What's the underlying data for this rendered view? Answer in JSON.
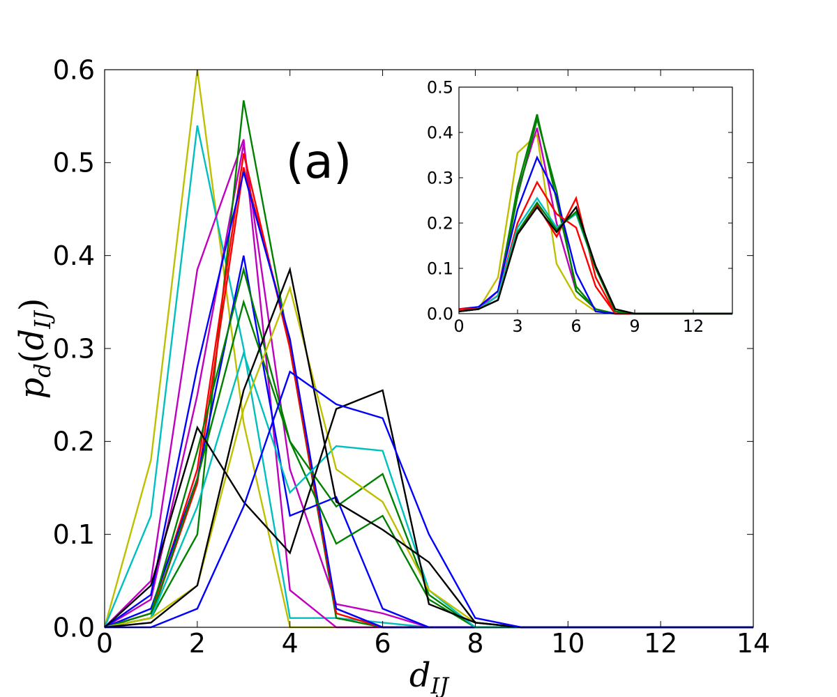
{
  "chart_data": [
    {
      "id": "main",
      "type": "line",
      "title": "",
      "annotation": "(a)",
      "xlabel": {
        "main": "d",
        "sub": "IJ"
      },
      "ylabel": {
        "main": "p",
        "sub": "d",
        "arg_main": "d",
        "arg_sub": "IJ",
        "open": "(",
        "close": ")"
      },
      "xlim": [
        0,
        14
      ],
      "ylim": [
        0,
        0.6
      ],
      "xticks": [
        0,
        2,
        4,
        6,
        8,
        10,
        12,
        14
      ],
      "xtick_labels": [
        "0",
        "2",
        "4",
        "6",
        "8",
        "10",
        "12",
        "14"
      ],
      "yticks": [
        0,
        0.1,
        0.2,
        0.3,
        0.4,
        0.5,
        0.6
      ],
      "ytick_labels": [
        "0.0",
        "0.1",
        "0.2",
        "0.3",
        "0.4",
        "0.5",
        "0.6"
      ],
      "x": [
        0,
        1,
        2,
        3,
        4,
        5,
        6,
        7,
        8,
        9,
        10,
        11,
        12,
        13,
        14
      ],
      "series": [
        {
          "color": "#bfbf00",
          "values": [
            0,
            0.18,
            0.6,
            0.22,
            0.0,
            0.0,
            0.0,
            0,
            0,
            0,
            0,
            0,
            0,
            0,
            0
          ]
        },
        {
          "color": "#00bfbf",
          "values": [
            0,
            0.12,
            0.54,
            0.3,
            0.01,
            0.01,
            0.005,
            0,
            0,
            0,
            0,
            0,
            0,
            0,
            0
          ]
        },
        {
          "color": "#bf00bf",
          "values": [
            0,
            0.05,
            0.385,
            0.525,
            0.04,
            0.0,
            0.0,
            0,
            0,
            0,
            0,
            0,
            0,
            0,
            0
          ]
        },
        {
          "color": "#bf00bf",
          "values": [
            0,
            0.03,
            0.25,
            0.52,
            0.17,
            0.025,
            0.015,
            0,
            0,
            0,
            0,
            0,
            0,
            0,
            0
          ]
        },
        {
          "color": "#008000",
          "values": [
            0,
            0.01,
            0.1,
            0.567,
            0.3,
            0.01,
            0.0,
            0,
            0,
            0,
            0,
            0,
            0,
            0,
            0
          ]
        },
        {
          "color": "#ff0000",
          "values": [
            0,
            0.015,
            0.17,
            0.51,
            0.3,
            0.015,
            0.0,
            0,
            0,
            0,
            0,
            0,
            0,
            0,
            0
          ]
        },
        {
          "color": "#ff0000",
          "values": [
            0,
            0.01,
            0.155,
            0.495,
            0.31,
            0.02,
            0.0,
            0,
            0,
            0,
            0,
            0,
            0,
            0,
            0
          ]
        },
        {
          "color": "#0000ff",
          "values": [
            0,
            0.035,
            0.28,
            0.49,
            0.31,
            0.02,
            0.0,
            0,
            0,
            0,
            0,
            0,
            0,
            0,
            0
          ]
        },
        {
          "color": "#0000ff",
          "values": [
            0,
            0.02,
            0.16,
            0.4,
            0.12,
            0.14,
            0.02,
            0,
            0,
            0,
            0,
            0,
            0,
            0,
            0
          ]
        },
        {
          "color": "#008000",
          "values": [
            0,
            0.015,
            0.19,
            0.385,
            0.2,
            0.09,
            0.12,
            0.03,
            0.0,
            0,
            0,
            0,
            0,
            0,
            0
          ]
        },
        {
          "color": "#008000",
          "values": [
            0,
            0.01,
            0.16,
            0.35,
            0.2,
            0.13,
            0.165,
            0.035,
            0.0,
            0,
            0,
            0,
            0,
            0,
            0
          ]
        },
        {
          "color": "#00bfbf",
          "values": [
            0,
            0.01,
            0.13,
            0.295,
            0.145,
            0.195,
            0.19,
            0.04,
            0.0,
            0,
            0,
            0,
            0,
            0,
            0
          ]
        },
        {
          "color": "#bfbf00",
          "values": [
            0,
            0.01,
            0.045,
            0.235,
            0.365,
            0.17,
            0.135,
            0.04,
            0.005,
            0,
            0,
            0,
            0,
            0,
            0
          ]
        },
        {
          "color": "#000000",
          "values": [
            0,
            0.005,
            0.045,
            0.255,
            0.385,
            0.135,
            0.105,
            0.07,
            0.005,
            0,
            0,
            0,
            0,
            0,
            0
          ]
        },
        {
          "color": "#000000",
          "values": [
            0,
            0.045,
            0.215,
            0.135,
            0.08,
            0.235,
            0.255,
            0.025,
            0.005,
            0,
            0,
            0,
            0,
            0,
            0
          ]
        },
        {
          "color": "#0000ff",
          "values": [
            0,
            0.0,
            0.02,
            0.13,
            0.275,
            0.24,
            0.225,
            0.1,
            0.01,
            0,
            0,
            0,
            0,
            0,
            0
          ]
        }
      ]
    },
    {
      "id": "inset",
      "type": "line",
      "title": "",
      "xlim": [
        0,
        14
      ],
      "ylim": [
        0,
        0.5
      ],
      "xticks": [
        0,
        3,
        6,
        9,
        12
      ],
      "xtick_labels": [
        "0",
        "3",
        "6",
        "9",
        "12"
      ],
      "yticks": [
        0,
        0.1,
        0.2,
        0.3,
        0.4,
        0.5
      ],
      "ytick_labels": [
        "0.0",
        "0.1",
        "0.2",
        "0.3",
        "0.4",
        "0.5"
      ],
      "x": [
        0,
        1,
        2,
        3,
        4,
        5,
        6,
        7,
        8,
        9,
        10,
        11,
        12,
        13,
        14
      ],
      "series": [
        {
          "color": "#bfbf00",
          "values": [
            0.01,
            0.01,
            0.08,
            0.355,
            0.395,
            0.11,
            0.035,
            0.005,
            0,
            0,
            0,
            0,
            0,
            0,
            0
          ]
        },
        {
          "color": "#bf00bf",
          "values": [
            0.005,
            0.01,
            0.05,
            0.27,
            0.41,
            0.2,
            0.05,
            0.01,
            0,
            0,
            0,
            0,
            0,
            0,
            0
          ]
        },
        {
          "color": "#008000",
          "values": [
            0.005,
            0.01,
            0.04,
            0.28,
            0.44,
            0.25,
            0.06,
            0.01,
            0,
            0,
            0,
            0,
            0,
            0,
            0
          ]
        },
        {
          "color": "#008000",
          "values": [
            0.005,
            0.01,
            0.04,
            0.26,
            0.43,
            0.27,
            0.05,
            0.01,
            0,
            0,
            0,
            0,
            0,
            0,
            0
          ]
        },
        {
          "color": "#0000ff",
          "values": [
            0.01,
            0.015,
            0.05,
            0.23,
            0.345,
            0.26,
            0.09,
            0.005,
            0,
            0,
            0,
            0,
            0,
            0,
            0
          ]
        },
        {
          "color": "#ff0000",
          "values": [
            0.01,
            0.01,
            0.04,
            0.2,
            0.29,
            0.22,
            0.19,
            0.06,
            0,
            0,
            0,
            0,
            0,
            0,
            0
          ]
        },
        {
          "color": "#ff0000",
          "values": [
            0.01,
            0.01,
            0.04,
            0.175,
            0.24,
            0.17,
            0.255,
            0.08,
            0,
            0,
            0,
            0,
            0,
            0,
            0
          ]
        },
        {
          "color": "#00bfbf",
          "values": [
            0.005,
            0.01,
            0.04,
            0.19,
            0.255,
            0.19,
            0.22,
            0.1,
            0.005,
            0,
            0,
            0,
            0,
            0,
            0
          ]
        },
        {
          "color": "#008000",
          "values": [
            0.005,
            0.01,
            0.03,
            0.18,
            0.245,
            0.185,
            0.225,
            0.1,
            0.005,
            0,
            0,
            0,
            0,
            0,
            0
          ]
        },
        {
          "color": "#000000",
          "values": [
            0.005,
            0.01,
            0.03,
            0.175,
            0.235,
            0.18,
            0.235,
            0.105,
            0.01,
            0,
            0,
            0,
            0,
            0,
            0
          ]
        }
      ]
    }
  ]
}
